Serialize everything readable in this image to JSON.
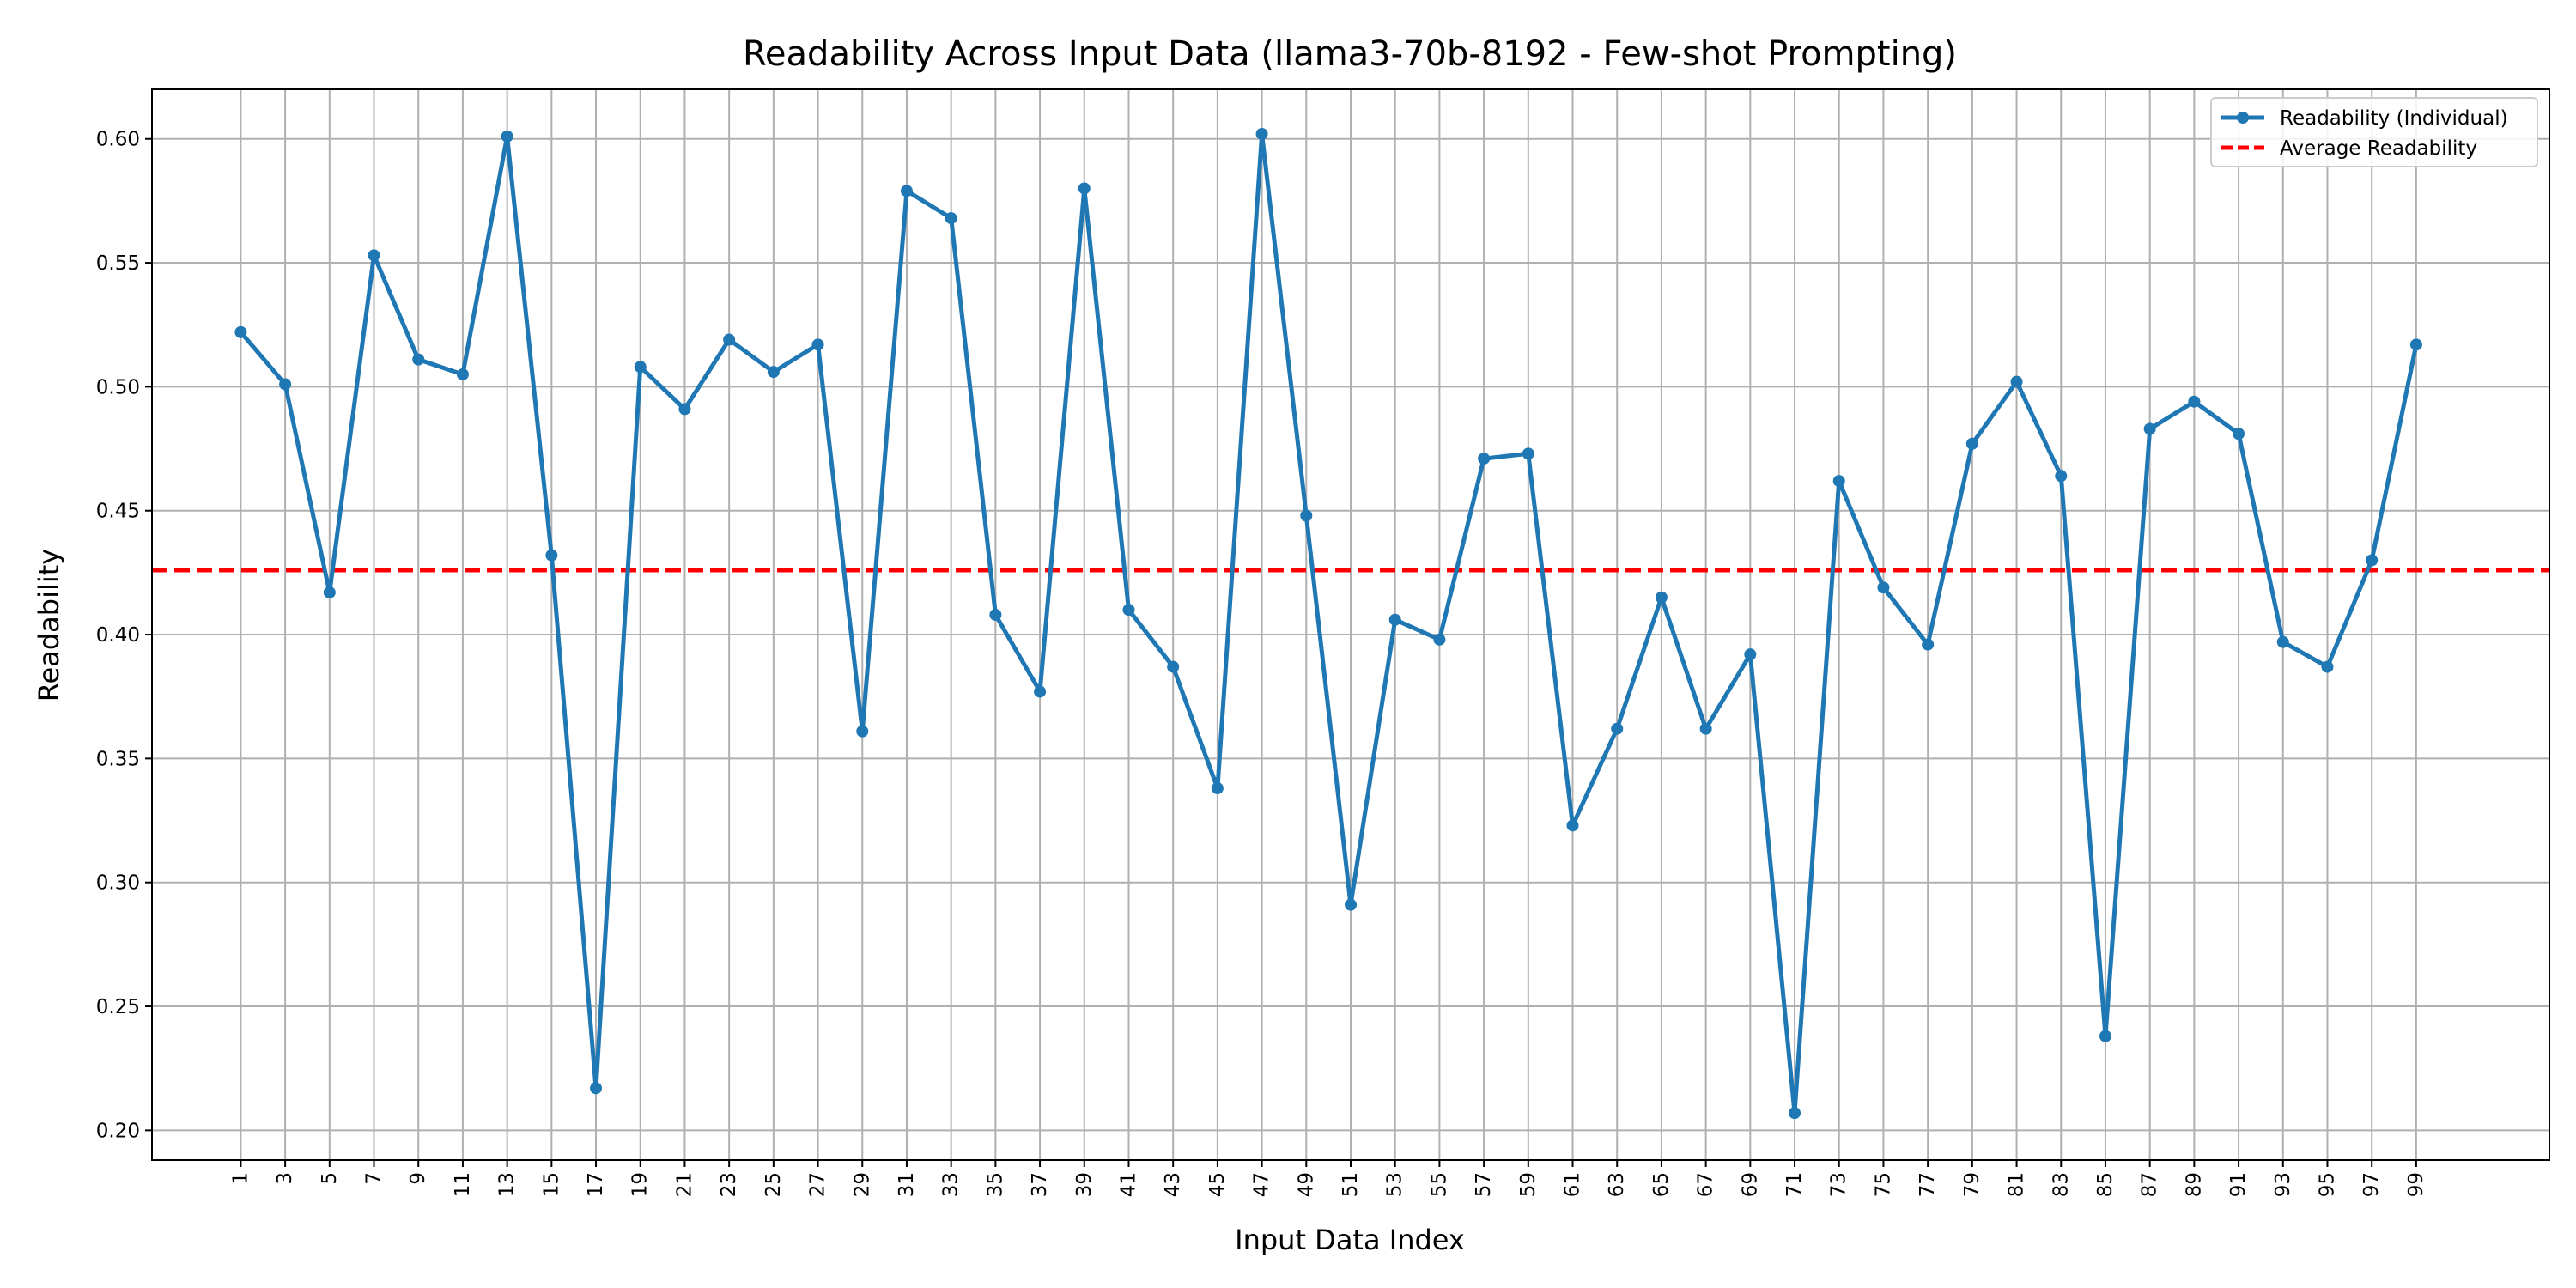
{
  "chart_data": {
    "type": "line",
    "title": "Readability Across Input Data (llama3-70b-8192 - Few-shot Prompting)",
    "xlabel": "Input Data Index",
    "ylabel": "Readability",
    "xlim": [
      -3,
      105
    ],
    "ylim": [
      0.188,
      0.62
    ],
    "x_ticks": [
      "1",
      "3",
      "5",
      "7",
      "9",
      "11",
      "13",
      "15",
      "17",
      "19",
      "21",
      "23",
      "25",
      "27",
      "29",
      "31",
      "33",
      "35",
      "37",
      "39",
      "41",
      "43",
      "45",
      "47",
      "49",
      "51",
      "53",
      "55",
      "57",
      "59",
      "61",
      "63",
      "65",
      "67",
      "69",
      "71",
      "73",
      "75",
      "77",
      "79",
      "81",
      "83",
      "85",
      "87",
      "89",
      "91",
      "93",
      "95",
      "97",
      "99"
    ],
    "y_ticks": [
      "0.20",
      "0.25",
      "0.30",
      "0.35",
      "0.40",
      "0.45",
      "0.50",
      "0.55",
      "0.60"
    ],
    "grid": true,
    "legend_position": "top-right",
    "series": [
      {
        "name": "Readability (Individual)",
        "color": "#1f77b4",
        "marker": "circle",
        "x": [
          1,
          3,
          5,
          7,
          9,
          11,
          13,
          15,
          17,
          19,
          21,
          23,
          25,
          27,
          29,
          31,
          33,
          35,
          37,
          39,
          41,
          43,
          45,
          47,
          49,
          51,
          53,
          55,
          57,
          59,
          61,
          63,
          65,
          67,
          69,
          71,
          73,
          75,
          77,
          79,
          81,
          83,
          85,
          87,
          89,
          91,
          93,
          95,
          97,
          99
        ],
        "values": [
          0.522,
          0.501,
          0.417,
          0.553,
          0.511,
          0.505,
          0.601,
          0.432,
          0.217,
          0.508,
          0.491,
          0.519,
          0.506,
          0.517,
          0.361,
          0.579,
          0.568,
          0.408,
          0.377,
          0.58,
          0.41,
          0.387,
          0.338,
          0.602,
          0.448,
          0.291,
          0.406,
          0.398,
          0.471,
          0.473,
          0.323,
          0.362,
          0.415,
          0.362,
          0.392,
          0.207,
          0.462,
          0.419,
          0.396,
          0.477,
          0.502,
          0.464,
          0.238,
          0.483,
          0.494,
          0.481,
          0.397,
          0.387,
          0.43,
          0.517
        ]
      }
    ],
    "reference_lines": [
      {
        "name": "Average Readability",
        "color": "#ff0000",
        "style": "dashed",
        "y": 0.426
      }
    ]
  }
}
